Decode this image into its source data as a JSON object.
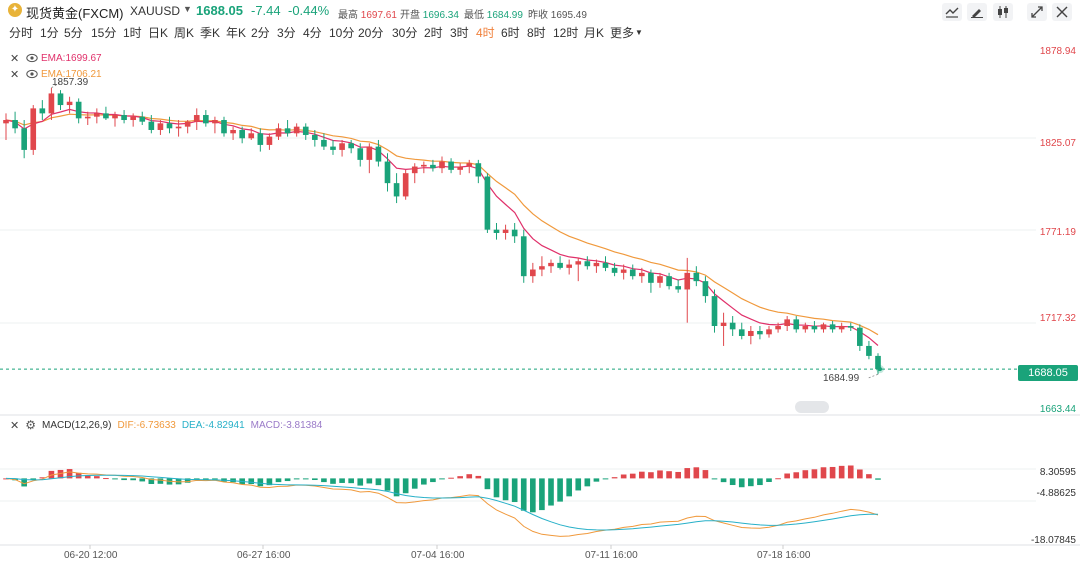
{
  "header": {
    "logo_icon": "gold-coin-icon",
    "name": "现货黄金(FXCM)",
    "code": "XAUUSD",
    "price": "1688.05",
    "change": "-7.44",
    "change_pct": "-0.44%",
    "high_label": "最高",
    "high_value": "1697.61",
    "open_label": "开盘",
    "open_value": "1696.34",
    "low_label": "最低",
    "low_value": "1684.99",
    "prev_label": "昨收",
    "prev_value": "1695.49"
  },
  "toolbar": {
    "buttons": [
      "line-style-icon",
      "draw-icon",
      "candle-type-icon",
      "expand-icon",
      "close-icon"
    ]
  },
  "intervals": {
    "items": [
      "分时",
      "1分",
      "5分",
      "15分",
      "1时",
      "日K",
      "周K",
      "季K",
      "年K",
      "2分",
      "3分",
      "4分",
      "10分",
      "20分",
      "30分",
      "2时",
      "3时",
      "4时",
      "6时",
      "8时",
      "12时",
      "月K",
      "更多"
    ],
    "active": "4时"
  },
  "indicators": {
    "ema1": "EMA:1699.67",
    "ema2": "EMA:1706.21",
    "ema1_color": "#e0306a",
    "ema2_color": "#f0993c"
  },
  "price_axis": [
    "1878.94",
    "1825.07",
    "1771.19",
    "1717.32",
    "1663.44"
  ],
  "current_price_tag": "1688.05",
  "chart_annotations": {
    "high": "1857.39",
    "low": "1684.99"
  },
  "macd": {
    "title": "MACD(12,26,9)",
    "dif": "DIF:-6.73633",
    "dea": "DEA:-4.82941",
    "macd": "MACD:-3.81384",
    "axis": [
      "8.30595",
      "-4.88625",
      "-18.07845"
    ],
    "colors": {
      "dif": "#f0993c",
      "dea": "#27b0c8",
      "macd": "#9a7ac8",
      "up": "#e0474c",
      "down": "#1aa37a"
    }
  },
  "time_axis": [
    "06-20 12:00",
    "06-27 16:00",
    "07-04 16:00",
    "07-11 16:00",
    "07-18 16:00"
  ],
  "chart_data": {
    "type": "candlestick",
    "symbol": "XAUUSD",
    "interval": "4时",
    "y_range": [
      1663.44,
      1878.94
    ],
    "y_ticks": [
      1878.94,
      1825.07,
      1771.19,
      1717.32,
      1663.44
    ],
    "x_ticks": [
      "06-20 12:00",
      "06-27 16:00",
      "07-04 16:00",
      "07-11 16:00",
      "07-18 16:00"
    ],
    "candles": [
      {
        "o": 1836,
        "h": 1842,
        "l": 1826,
        "c": 1838
      },
      {
        "o": 1838,
        "h": 1843,
        "l": 1830,
        "c": 1833
      },
      {
        "o": 1833,
        "h": 1838,
        "l": 1815,
        "c": 1820
      },
      {
        "o": 1820,
        "h": 1847,
        "l": 1817,
        "c": 1845
      },
      {
        "o": 1845,
        "h": 1850,
        "l": 1838,
        "c": 1842
      },
      {
        "o": 1842,
        "h": 1857.39,
        "l": 1838,
        "c": 1854
      },
      {
        "o": 1854,
        "h": 1856,
        "l": 1844,
        "c": 1847
      },
      {
        "o": 1847,
        "h": 1852,
        "l": 1842,
        "c": 1849
      },
      {
        "o": 1849,
        "h": 1851,
        "l": 1836,
        "c": 1839
      },
      {
        "o": 1839,
        "h": 1843,
        "l": 1835,
        "c": 1840
      },
      {
        "o": 1840,
        "h": 1845,
        "l": 1836,
        "c": 1842
      },
      {
        "o": 1842,
        "h": 1846,
        "l": 1838,
        "c": 1839
      },
      {
        "o": 1839,
        "h": 1843,
        "l": 1834,
        "c": 1841
      },
      {
        "o": 1841,
        "h": 1844,
        "l": 1836,
        "c": 1838
      },
      {
        "o": 1838,
        "h": 1842,
        "l": 1834,
        "c": 1840
      },
      {
        "o": 1840,
        "h": 1843,
        "l": 1835,
        "c": 1837
      },
      {
        "o": 1837,
        "h": 1841,
        "l": 1830,
        "c": 1832
      },
      {
        "o": 1832,
        "h": 1838,
        "l": 1829,
        "c": 1836
      },
      {
        "o": 1836,
        "h": 1840,
        "l": 1830,
        "c": 1833
      },
      {
        "o": 1833,
        "h": 1838,
        "l": 1828,
        "c": 1834
      },
      {
        "o": 1834,
        "h": 1838,
        "l": 1830,
        "c": 1837
      },
      {
        "o": 1837,
        "h": 1845,
        "l": 1832,
        "c": 1841
      },
      {
        "o": 1841,
        "h": 1844,
        "l": 1834,
        "c": 1836
      },
      {
        "o": 1836,
        "h": 1840,
        "l": 1830,
        "c": 1838
      },
      {
        "o": 1838,
        "h": 1840,
        "l": 1828,
        "c": 1830
      },
      {
        "o": 1830,
        "h": 1834,
        "l": 1826,
        "c": 1832
      },
      {
        "o": 1832,
        "h": 1834,
        "l": 1824,
        "c": 1827
      },
      {
        "o": 1827,
        "h": 1833,
        "l": 1826,
        "c": 1830
      },
      {
        "o": 1830,
        "h": 1833,
        "l": 1819,
        "c": 1823
      },
      {
        "o": 1823,
        "h": 1830,
        "l": 1820,
        "c": 1828
      },
      {
        "o": 1828,
        "h": 1836,
        "l": 1826,
        "c": 1833
      },
      {
        "o": 1833,
        "h": 1838,
        "l": 1828,
        "c": 1830
      },
      {
        "o": 1830,
        "h": 1836,
        "l": 1828,
        "c": 1834
      },
      {
        "o": 1834,
        "h": 1836,
        "l": 1826,
        "c": 1829
      },
      {
        "o": 1829,
        "h": 1832,
        "l": 1822,
        "c": 1826
      },
      {
        "o": 1826,
        "h": 1830,
        "l": 1820,
        "c": 1822
      },
      {
        "o": 1822,
        "h": 1826,
        "l": 1817,
        "c": 1820
      },
      {
        "o": 1820,
        "h": 1826,
        "l": 1816,
        "c": 1824
      },
      {
        "o": 1824,
        "h": 1826,
        "l": 1818,
        "c": 1821
      },
      {
        "o": 1821,
        "h": 1824,
        "l": 1810,
        "c": 1814
      },
      {
        "o": 1814,
        "h": 1824,
        "l": 1806,
        "c": 1822
      },
      {
        "o": 1822,
        "h": 1826,
        "l": 1810,
        "c": 1813
      },
      {
        "o": 1813,
        "h": 1818,
        "l": 1795,
        "c": 1800
      },
      {
        "o": 1800,
        "h": 1806,
        "l": 1788,
        "c": 1792
      },
      {
        "o": 1792,
        "h": 1808,
        "l": 1790,
        "c": 1806
      },
      {
        "o": 1806,
        "h": 1812,
        "l": 1800,
        "c": 1810
      },
      {
        "o": 1810,
        "h": 1813,
        "l": 1806,
        "c": 1811
      },
      {
        "o": 1811,
        "h": 1814,
        "l": 1807,
        "c": 1809
      },
      {
        "o": 1809,
        "h": 1816,
        "l": 1806,
        "c": 1813
      },
      {
        "o": 1813,
        "h": 1815,
        "l": 1806,
        "c": 1808
      },
      {
        "o": 1808,
        "h": 1812,
        "l": 1805,
        "c": 1810
      },
      {
        "o": 1810,
        "h": 1814,
        "l": 1806,
        "c": 1812
      },
      {
        "o": 1812,
        "h": 1814,
        "l": 1800,
        "c": 1804
      },
      {
        "o": 1804,
        "h": 1806,
        "l": 1770,
        "c": 1772
      },
      {
        "o": 1772,
        "h": 1776,
        "l": 1766,
        "c": 1770
      },
      {
        "o": 1770,
        "h": 1775,
        "l": 1766,
        "c": 1772
      },
      {
        "o": 1772,
        "h": 1776,
        "l": 1764,
        "c": 1768
      },
      {
        "o": 1768,
        "h": 1772,
        "l": 1740,
        "c": 1744
      },
      {
        "o": 1744,
        "h": 1752,
        "l": 1740,
        "c": 1748
      },
      {
        "o": 1748,
        "h": 1756,
        "l": 1744,
        "c": 1750
      },
      {
        "o": 1750,
        "h": 1754,
        "l": 1746,
        "c": 1752
      },
      {
        "o": 1752,
        "h": 1756,
        "l": 1748,
        "c": 1749
      },
      {
        "o": 1749,
        "h": 1754,
        "l": 1745,
        "c": 1751
      },
      {
        "o": 1751,
        "h": 1755,
        "l": 1741,
        "c": 1753
      },
      {
        "o": 1753,
        "h": 1756,
        "l": 1748,
        "c": 1750
      },
      {
        "o": 1750,
        "h": 1754,
        "l": 1746,
        "c": 1752
      },
      {
        "o": 1752,
        "h": 1756,
        "l": 1747,
        "c": 1749
      },
      {
        "o": 1749,
        "h": 1752,
        "l": 1744,
        "c": 1746
      },
      {
        "o": 1746,
        "h": 1751,
        "l": 1742,
        "c": 1748
      },
      {
        "o": 1748,
        "h": 1751,
        "l": 1742,
        "c": 1744
      },
      {
        "o": 1744,
        "h": 1749,
        "l": 1740,
        "c": 1746
      },
      {
        "o": 1746,
        "h": 1748,
        "l": 1734,
        "c": 1740
      },
      {
        "o": 1740,
        "h": 1746,
        "l": 1737,
        "c": 1744
      },
      {
        "o": 1744,
        "h": 1746,
        "l": 1736,
        "c": 1738
      },
      {
        "o": 1738,
        "h": 1742,
        "l": 1734,
        "c": 1736
      },
      {
        "o": 1736,
        "h": 1755,
        "l": 1716,
        "c": 1746
      },
      {
        "o": 1746,
        "h": 1750,
        "l": 1738,
        "c": 1741
      },
      {
        "o": 1741,
        "h": 1744,
        "l": 1728,
        "c": 1732
      },
      {
        "o": 1732,
        "h": 1736,
        "l": 1710,
        "c": 1714
      },
      {
        "o": 1714,
        "h": 1722,
        "l": 1702,
        "c": 1716
      },
      {
        "o": 1716,
        "h": 1720,
        "l": 1708,
        "c": 1712
      },
      {
        "o": 1712,
        "h": 1716,
        "l": 1706,
        "c": 1708
      },
      {
        "o": 1708,
        "h": 1714,
        "l": 1703,
        "c": 1711
      },
      {
        "o": 1711,
        "h": 1714,
        "l": 1706,
        "c": 1709
      },
      {
        "o": 1709,
        "h": 1714,
        "l": 1707,
        "c": 1712
      },
      {
        "o": 1712,
        "h": 1716,
        "l": 1710,
        "c": 1714
      },
      {
        "o": 1714,
        "h": 1720,
        "l": 1711,
        "c": 1718
      },
      {
        "o": 1718,
        "h": 1720,
        "l": 1710,
        "c": 1712
      },
      {
        "o": 1712,
        "h": 1716,
        "l": 1710,
        "c": 1714
      },
      {
        "o": 1714,
        "h": 1717,
        "l": 1710,
        "c": 1712
      },
      {
        "o": 1712,
        "h": 1716,
        "l": 1710,
        "c": 1715
      },
      {
        "o": 1715,
        "h": 1717,
        "l": 1710,
        "c": 1712
      },
      {
        "o": 1712,
        "h": 1716,
        "l": 1710,
        "c": 1714
      },
      {
        "o": 1714,
        "h": 1716,
        "l": 1711,
        "c": 1713
      },
      {
        "o": 1713,
        "h": 1715,
        "l": 1699,
        "c": 1702
      },
      {
        "o": 1702,
        "h": 1705,
        "l": 1694,
        "c": 1696
      },
      {
        "o": 1696,
        "h": 1697.61,
        "l": 1684.99,
        "c": 1688.05
      }
    ],
    "series": [
      {
        "name": "EMA:1699.67",
        "last": 1699.67
      },
      {
        "name": "EMA:1706.21",
        "last": 1706.21
      }
    ],
    "macd": {
      "params": "MACD(12,26,9)",
      "dif": -6.73633,
      "dea": -4.82941,
      "macd": -3.81384,
      "y_ticks": [
        8.30595,
        -4.88625,
        -18.07845
      ]
    },
    "annotations": [
      {
        "label": "1857.39",
        "type": "high"
      },
      {
        "label": "1684.99",
        "type": "low"
      }
    ]
  }
}
